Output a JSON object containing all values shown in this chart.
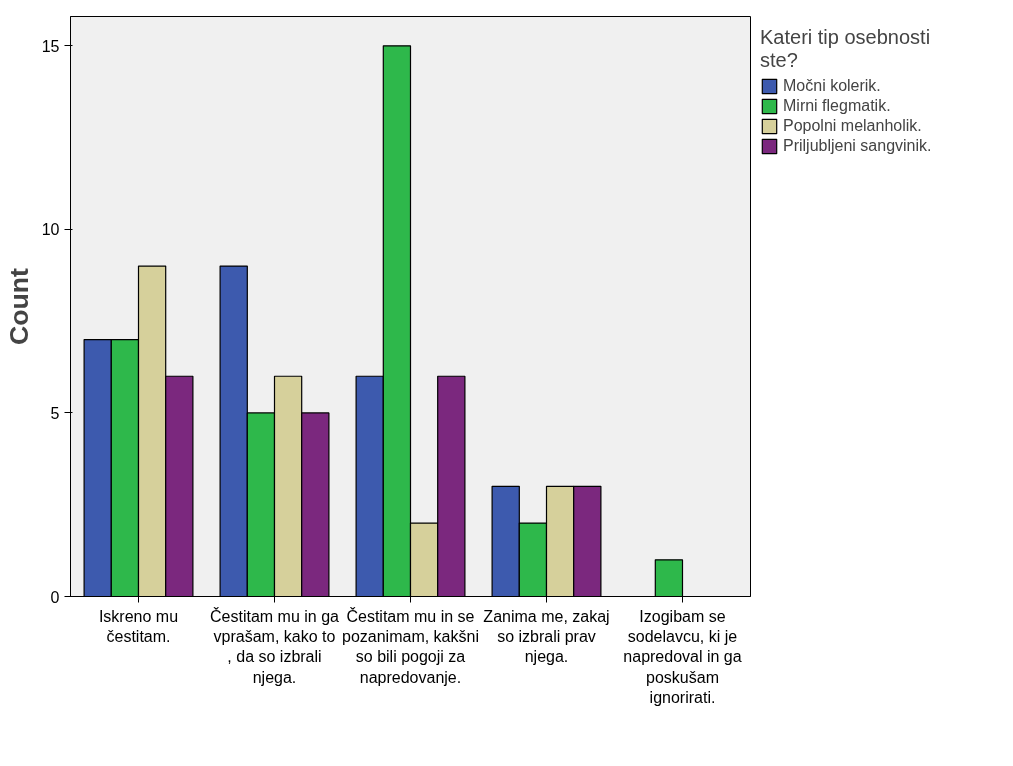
{
  "chart_data": {
    "type": "bar",
    "ylabel": "Count",
    "legend_title": "Kateri tip osebnosti ste?",
    "categories": [
      "Iskreno mu čestitam.",
      "Čestitam mu in ga vprašam, kako to , da so izbrali njega.",
      "Čestitam mu in se pozanimam, kakšni so bili pogoji za napredovanje.",
      "Zanima me, zakaj so izbrali prav njega.",
      "Izogibam se sodelavcu, ki je napredoval in ga poskušam ignorirati."
    ],
    "series": [
      {
        "name": "Močni kolerik.",
        "color": "#3d5aae",
        "values": [
          7,
          9,
          6,
          3,
          null
        ]
      },
      {
        "name": "Mirni flegmatik.",
        "color": "#2eb84b",
        "values": [
          7,
          5,
          15,
          2,
          1
        ]
      },
      {
        "name": "Popolni melanholik.",
        "color": "#d6d09b",
        "values": [
          9,
          6,
          2,
          3,
          null
        ]
      },
      {
        "name": "Priljubljeni sangvinik.",
        "color": "#7b287e",
        "values": [
          6,
          5,
          6,
          3,
          null
        ]
      }
    ],
    "ylim": [
      0,
      15.8
    ],
    "yticks": [
      0,
      5,
      10,
      15
    ],
    "grid": false,
    "legend": "top right"
  }
}
